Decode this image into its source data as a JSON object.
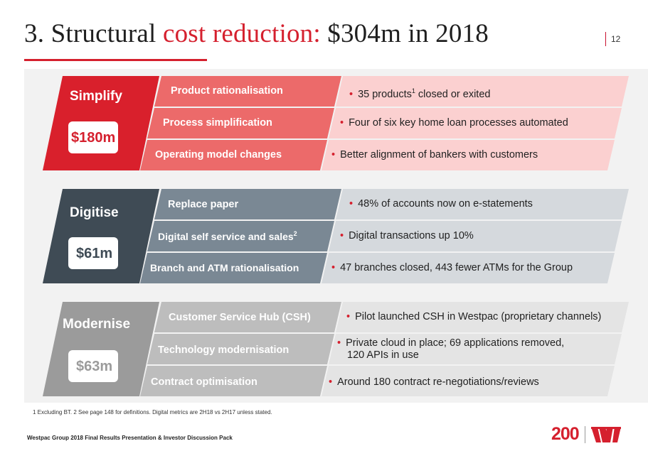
{
  "slide": {
    "title_prefix": "3. Structural ",
    "title_highlight": "cost reduction:",
    "title_suffix": " $304m in 2018",
    "page_number": "12"
  },
  "sections": [
    {
      "name": "Simplify",
      "amount": "$180m",
      "rows": [
        {
          "label": "Product rationalisation",
          "label_sup": "",
          "bullet": "35 products",
          "bullet_sup": "1",
          "bullet_rest": " closed or exited"
        },
        {
          "label": "Process simplification",
          "label_sup": "",
          "bullet": "Four of six key home loan processes automated",
          "bullet_sup": "",
          "bullet_rest": ""
        },
        {
          "label": "Operating model changes",
          "label_sup": "",
          "bullet": "Better alignment of bankers with customers",
          "bullet_sup": "",
          "bullet_rest": ""
        }
      ]
    },
    {
      "name": "Digitise",
      "amount": "$61m",
      "rows": [
        {
          "label": "Replace paper",
          "label_sup": "",
          "bullet": "48% of accounts now on e-statements",
          "bullet_sup": "",
          "bullet_rest": ""
        },
        {
          "label": "Digital self service and sales",
          "label_sup": "2",
          "bullet": "Digital transactions up 10%",
          "bullet_sup": "",
          "bullet_rest": ""
        },
        {
          "label": "Branch and ATM rationalisation",
          "label_sup": "",
          "bullet": "47 branches closed, 443 fewer ATMs for the Group",
          "bullet_sup": "",
          "bullet_rest": ""
        }
      ]
    },
    {
      "name": "Modernise",
      "amount": "$63m",
      "rows": [
        {
          "label": "Customer Service Hub (CSH)",
          "label_sup": "",
          "bullet": "Pilot launched CSH in Westpac (proprietary channels)",
          "bullet_sup": "",
          "bullet_rest": ""
        },
        {
          "label": "Technology modernisation",
          "label_sup": "",
          "bullet": "Private cloud in place; 69 applications removed,",
          "bullet_line2": "120 APIs in use",
          "bullet_sup": "",
          "bullet_rest": ""
        },
        {
          "label": "Contract optimisation",
          "label_sup": "",
          "bullet": "Around 180 contract re-negotiations/reviews",
          "bullet_sup": "",
          "bullet_rest": ""
        }
      ]
    }
  ],
  "footnote": "1 Excluding BT. 2 See page 148 for definitions. Digital metrics are 2H18 vs 2H17 unless stated.",
  "footer": "Westpac Group 2018 Final Results Presentation & Investor Discussion Pack",
  "logo": {
    "text": "200",
    "brand_icon": "westpac-w-logo"
  },
  "colors": {
    "red_dark": "#d9202c",
    "red_mid": "#ec6a6a",
    "red_light": "#fbd0d0",
    "slate_dark": "#3f4b55",
    "slate_mid": "#7a8894",
    "slate_light": "#d5d9dd",
    "grey_dark": "#9b9b9b",
    "grey_mid": "#bdbdbd",
    "grey_light": "#e4e4e4"
  }
}
